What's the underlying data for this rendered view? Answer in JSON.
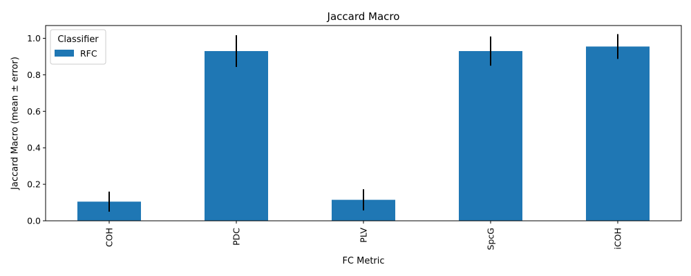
{
  "chart_data": {
    "type": "bar",
    "title": "Jaccard Macro",
    "xlabel": "FC Metric",
    "ylabel": "Jaccard Macro (mean ± error)",
    "categories": [
      "COH",
      "PDC",
      "PLV",
      "SpcG",
      "iCOH"
    ],
    "series": [
      {
        "name": "RFC",
        "values": [
          0.105,
          0.93,
          0.115,
          0.93,
          0.955
        ],
        "errors": [
          0.055,
          0.087,
          0.058,
          0.08,
          0.068
        ]
      }
    ],
    "ylim": [
      0,
      1.07
    ],
    "yticks": [
      "0.0",
      "0.2",
      "0.4",
      "0.6",
      "0.8",
      "1.0"
    ],
    "grid": false,
    "legend": {
      "title": "Classifier",
      "position": "top-left"
    },
    "colors": {
      "bar": "#1f77b4",
      "error": "#000000",
      "axis": "#000000"
    }
  }
}
